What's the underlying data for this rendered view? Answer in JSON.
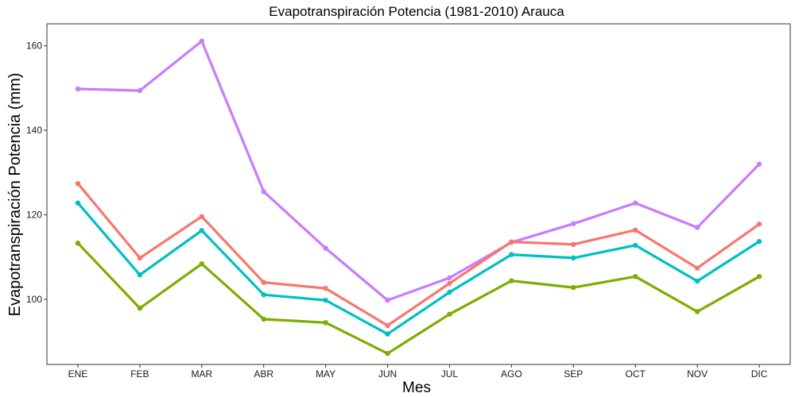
{
  "chart_data": {
    "type": "line",
    "title": "Evapotranspiración Potencia (1981-2010)  Arauca",
    "xlabel": "Mes",
    "ylabel": "Evapotranspiración Potencia  (mm)",
    "categories": [
      "ENE",
      "FEB",
      "MAR",
      "ABR",
      "MAY",
      "JUN",
      "JUL",
      "AGO",
      "SEP",
      "OCT",
      "NOV",
      "DIC"
    ],
    "ylim": [
      84.6,
      165.2
    ],
    "yticks": [
      100,
      120,
      140,
      160
    ],
    "grid": false,
    "legend": "none",
    "series": [
      {
        "color": "#c77cff",
        "values": [
          149.8,
          149.4,
          161.1,
          125.5,
          112.1,
          99.8,
          105.1,
          113.5,
          117.9,
          122.8,
          117.0,
          132.0
        ]
      },
      {
        "color": "#f8766d",
        "values": [
          127.4,
          109.8,
          119.6,
          104.0,
          102.6,
          93.8,
          103.8,
          113.6,
          113.0,
          116.4,
          107.4,
          117.8
        ]
      },
      {
        "color": "#00bfc4",
        "values": [
          122.8,
          105.8,
          116.3,
          101.1,
          99.8,
          91.8,
          101.7,
          110.6,
          109.8,
          112.8,
          104.3,
          113.7
        ]
      },
      {
        "color": "#7cae00",
        "values": [
          113.3,
          97.9,
          108.4,
          95.3,
          94.5,
          87.2,
          96.5,
          104.4,
          102.8,
          105.4,
          97.1,
          105.4
        ]
      }
    ]
  }
}
